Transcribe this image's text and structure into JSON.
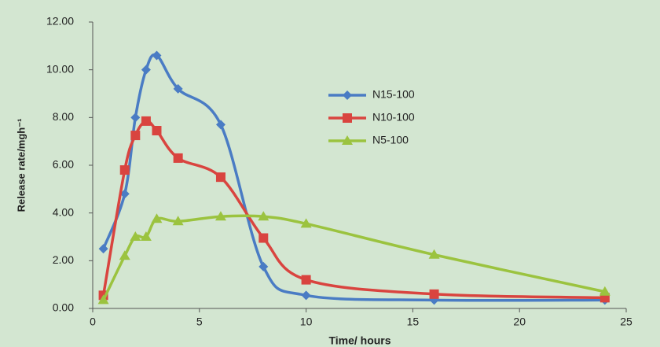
{
  "chart_data": {
    "type": "line",
    "x_label": "Time/ hours",
    "y_label": "Release rate/mgh⁻¹",
    "xlim": [
      0,
      25
    ],
    "xticks": [
      0,
      5,
      10,
      15,
      20,
      25
    ],
    "ylim": [
      0,
      12
    ],
    "yticks": [
      {
        "value": 0,
        "label": "0.00"
      },
      {
        "value": 2,
        "label": "2.00"
      },
      {
        "value": 4,
        "label": "4.00"
      },
      {
        "value": 6,
        "label": "6.00"
      },
      {
        "value": 8,
        "label": "8.00"
      },
      {
        "value": 10,
        "label": "10.00"
      },
      {
        "value": 12,
        "label": "12.00"
      }
    ],
    "smooth": true,
    "series": [
      {
        "name": "N15-100",
        "color": "#4a7cc4",
        "marker": "diamond",
        "x": [
          0.5,
          1.5,
          2,
          2.5,
          3,
          4,
          6,
          8,
          10,
          16,
          24
        ],
        "values": [
          2.5,
          4.8,
          8.0,
          10.0,
          10.6,
          9.2,
          7.7,
          1.75,
          0.55,
          0.35,
          0.35
        ]
      },
      {
        "name": "N10-100",
        "color": "#d9443f",
        "marker": "square",
        "x": [
          0.5,
          1.5,
          2,
          2.5,
          3,
          4,
          6,
          8,
          10,
          16,
          24
        ],
        "values": [
          0.55,
          5.8,
          7.25,
          7.85,
          7.45,
          6.3,
          5.5,
          2.95,
          1.2,
          0.6,
          0.45
        ]
      },
      {
        "name": "N5-100",
        "color": "#9bc33f",
        "marker": "triangle",
        "x": [
          0.5,
          1.5,
          2,
          2.5,
          3,
          4,
          6,
          8,
          10,
          16,
          24
        ],
        "values": [
          0.35,
          2.2,
          3.0,
          3.0,
          3.75,
          3.65,
          3.85,
          3.85,
          3.55,
          2.25,
          0.7
        ]
      }
    ]
  }
}
